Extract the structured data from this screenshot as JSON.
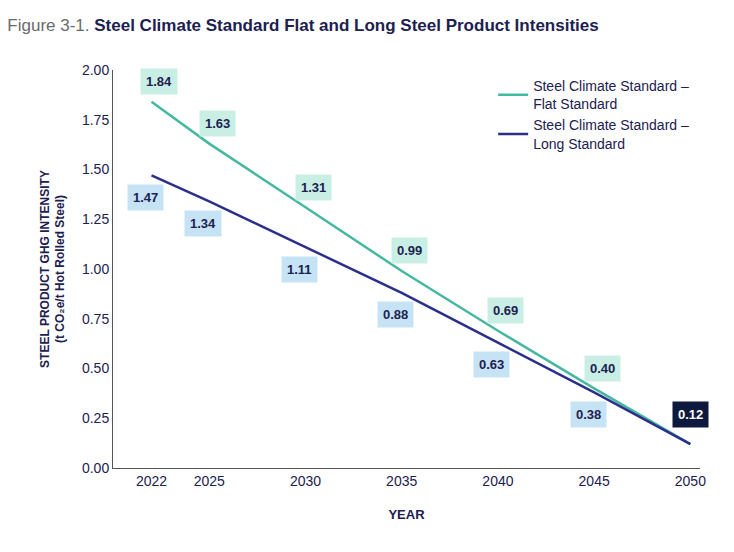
{
  "chart_data": {
    "type": "line",
    "title": "Figure 3-1. Steel Climate Standard Flat and Long Steel Product Intensities",
    "xlabel": "YEAR",
    "ylabel": "STEEL PRODUCT GHG INTENSITY (t CO₂e/t Hot Rolled Steel)",
    "x": [
      2022,
      2025,
      2030,
      2035,
      2040,
      2045,
      2050
    ],
    "series": [
      {
        "name": "Steel Climate Standard – Flat Standard",
        "color": "#45b9a0",
        "values": [
          1.84,
          1.63,
          1.31,
          0.99,
          0.69,
          0.4,
          0.12
        ],
        "value_labels": [
          "1.84",
          "1.63",
          "1.31",
          "0.99",
          "0.69",
          "0.40",
          "0.12"
        ]
      },
      {
        "name": "Steel Climate Standard – Long Standard",
        "color": "#2b2f8c",
        "values": [
          1.47,
          1.34,
          1.11,
          0.88,
          0.63,
          0.38,
          0.12
        ],
        "value_labels": [
          "1.47",
          "1.34",
          "1.11",
          "0.88",
          "0.63",
          "0.38",
          null
        ]
      }
    ],
    "xlim": [
      2020,
      2050.5
    ],
    "xticks": [
      2022,
      2025,
      2030,
      2035,
      2040,
      2045,
      2050
    ],
    "ylim": [
      0,
      2
    ],
    "yticks": [
      {
        "value": 0,
        "label": "0.00"
      },
      {
        "value": 0.25,
        "label": "0.25"
      },
      {
        "value": 0.5,
        "label": "0.50"
      },
      {
        "value": 0.75,
        "label": "0.75"
      },
      {
        "value": 1,
        "label": "1.00"
      },
      {
        "value": 1.25,
        "label": "1.25"
      },
      {
        "value": 1.5,
        "label": "1.50"
      },
      {
        "value": 1.75,
        "label": "1.75"
      },
      {
        "value": 2,
        "label": "2.00"
      }
    ],
    "grid": false,
    "legend": "upper right",
    "data_labels": true
  }
}
